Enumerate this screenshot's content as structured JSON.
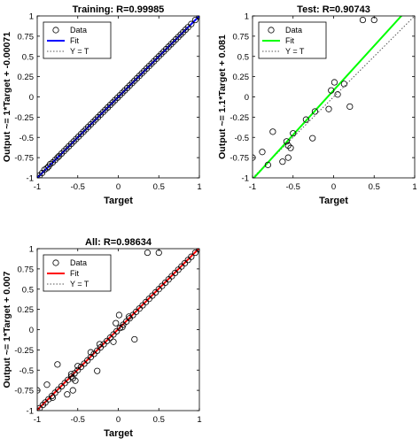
{
  "chart_data": [
    {
      "id": "training",
      "type": "scatter",
      "title": "Training: R=0.99985",
      "xlabel": "Target",
      "ylabel": "Output ~= 1*Target + -0.00071",
      "xlim": [
        -1,
        1
      ],
      "ylim": [
        -1,
        1
      ],
      "xticks": [
        "-1",
        "-0.5",
        "0",
        "0.5",
        "1"
      ],
      "yticks": [
        "-1",
        "-0.75",
        "-0.5",
        "-0.25",
        "0",
        "0.25",
        "0.5",
        "0.75",
        "1"
      ],
      "fit": {
        "slope": 1,
        "intercept": -0.00071,
        "color": "#0000ff"
      },
      "legend": {
        "placement": "top-left",
        "entries": [
          "Data",
          "Fit",
          "Y = T"
        ]
      },
      "points": [
        [
          -1,
          -1
        ],
        [
          -0.97,
          -0.97
        ],
        [
          -0.94,
          -0.94
        ],
        [
          -0.91,
          -0.9
        ],
        [
          -0.88,
          -0.88
        ],
        [
          -0.86,
          -0.86
        ],
        [
          -0.84,
          -0.83
        ],
        [
          -0.81,
          -0.81
        ],
        [
          -0.78,
          -0.78
        ],
        [
          -0.75,
          -0.75
        ],
        [
          -0.73,
          -0.73
        ],
        [
          -0.7,
          -0.7
        ],
        [
          -0.67,
          -0.67
        ],
        [
          -0.64,
          -0.64
        ],
        [
          -0.61,
          -0.61
        ],
        [
          -0.58,
          -0.58
        ],
        [
          -0.55,
          -0.55
        ],
        [
          -0.52,
          -0.52
        ],
        [
          -0.49,
          -0.49
        ],
        [
          -0.46,
          -0.46
        ],
        [
          -0.43,
          -0.43
        ],
        [
          -0.4,
          -0.4
        ],
        [
          -0.37,
          -0.37
        ],
        [
          -0.34,
          -0.34
        ],
        [
          -0.31,
          -0.31
        ],
        [
          -0.28,
          -0.28
        ],
        [
          -0.25,
          -0.25
        ],
        [
          -0.22,
          -0.22
        ],
        [
          -0.19,
          -0.19
        ],
        [
          -0.16,
          -0.16
        ],
        [
          -0.13,
          -0.13
        ],
        [
          -0.1,
          -0.1
        ],
        [
          -0.07,
          -0.07
        ],
        [
          -0.04,
          -0.04
        ],
        [
          -0.01,
          -0.01
        ],
        [
          0.02,
          0.02
        ],
        [
          0.05,
          0.05
        ],
        [
          0.08,
          0.08
        ],
        [
          0.11,
          0.11
        ],
        [
          0.14,
          0.14
        ],
        [
          0.17,
          0.17
        ],
        [
          0.2,
          0.2
        ],
        [
          0.23,
          0.23
        ],
        [
          0.26,
          0.26
        ],
        [
          0.29,
          0.29
        ],
        [
          0.32,
          0.32
        ],
        [
          0.35,
          0.35
        ],
        [
          0.38,
          0.38
        ],
        [
          0.41,
          0.41
        ],
        [
          0.44,
          0.44
        ],
        [
          0.47,
          0.47
        ],
        [
          0.5,
          0.5
        ],
        [
          0.53,
          0.53
        ],
        [
          0.56,
          0.56
        ],
        [
          0.59,
          0.59
        ],
        [
          0.62,
          0.62
        ],
        [
          0.65,
          0.65
        ],
        [
          0.68,
          0.68
        ],
        [
          0.71,
          0.71
        ],
        [
          0.74,
          0.74
        ],
        [
          0.77,
          0.77
        ],
        [
          0.8,
          0.8
        ],
        [
          0.83,
          0.83
        ],
        [
          0.86,
          0.86
        ],
        [
          0.9,
          0.9
        ],
        [
          0.95,
          0.95
        ],
        [
          1,
          1
        ],
        [
          1,
          0.99
        ]
      ]
    },
    {
      "id": "test",
      "type": "scatter",
      "title": "Test: R=0.90743",
      "xlabel": "Target",
      "ylabel": "Output ~= 1.1*Target + 0.081",
      "xlim": [
        -1,
        1
      ],
      "ylim": [
        -1,
        1
      ],
      "xticks": [
        "-1",
        "-0.5",
        "0",
        "0.5",
        "1"
      ],
      "yticks": [
        "-1",
        "-0.75",
        "-0.5",
        "-0.25",
        "0",
        "0.25",
        "0.5",
        "0.75",
        "1"
      ],
      "fit": {
        "slope": 1.1,
        "intercept": 0.081,
        "color": "#00ff00"
      },
      "legend": {
        "placement": "top-left",
        "entries": [
          "Data",
          "Fit",
          "Y = T"
        ]
      },
      "points": [
        [
          -1,
          -0.75
        ],
        [
          -0.88,
          -0.68
        ],
        [
          -0.81,
          -0.84
        ],
        [
          -0.75,
          -0.43
        ],
        [
          -0.63,
          -0.8
        ],
        [
          -0.58,
          -0.55
        ],
        [
          -0.56,
          -0.75
        ],
        [
          -0.56,
          -0.6
        ],
        [
          -0.53,
          -0.63
        ],
        [
          -0.5,
          -0.45
        ],
        [
          -0.34,
          -0.28
        ],
        [
          -0.26,
          -0.51
        ],
        [
          -0.23,
          -0.18
        ],
        [
          -0.06,
          -0.15
        ],
        [
          -0.03,
          0.08
        ],
        [
          0.01,
          0.18
        ],
        [
          0.05,
          0.03
        ],
        [
          0.13,
          0.16
        ],
        [
          0.2,
          -0.12
        ],
        [
          0.36,
          0.95
        ],
        [
          0.5,
          0.95
        ]
      ]
    },
    {
      "id": "all",
      "type": "scatter",
      "title": "All: R=0.98634",
      "xlabel": "Target",
      "ylabel": "Output ~= 1*Target + 0.007",
      "xlim": [
        -1,
        1
      ],
      "ylim": [
        -1,
        1
      ],
      "xticks": [
        "-1",
        "-0.5",
        "0",
        "0.5",
        "1"
      ],
      "yticks": [
        "-1",
        "-0.75",
        "-0.5",
        "-0.25",
        "0",
        "0.25",
        "0.5",
        "0.75",
        "1"
      ],
      "fit": {
        "slope": 1,
        "intercept": 0.007,
        "color": "#ff0000"
      },
      "legend": {
        "placement": "top-left",
        "entries": [
          "Data",
          "Fit",
          "Y = T"
        ]
      },
      "points": [
        [
          -1,
          -1
        ],
        [
          -1,
          -0.75
        ],
        [
          -0.97,
          -0.97
        ],
        [
          -0.93,
          -0.93
        ],
        [
          -0.9,
          -0.9
        ],
        [
          -0.88,
          -0.68
        ],
        [
          -0.86,
          -0.86
        ],
        [
          -0.82,
          -0.82
        ],
        [
          -0.81,
          -0.84
        ],
        [
          -0.78,
          -0.78
        ],
        [
          -0.75,
          -0.43
        ],
        [
          -0.74,
          -0.74
        ],
        [
          -0.7,
          -0.7
        ],
        [
          -0.66,
          -0.66
        ],
        [
          -0.63,
          -0.8
        ],
        [
          -0.62,
          -0.62
        ],
        [
          -0.58,
          -0.55
        ],
        [
          -0.58,
          -0.58
        ],
        [
          -0.56,
          -0.75
        ],
        [
          -0.56,
          -0.6
        ],
        [
          -0.53,
          -0.63
        ],
        [
          -0.54,
          -0.54
        ],
        [
          -0.5,
          -0.45
        ],
        [
          -0.5,
          -0.5
        ],
        [
          -0.46,
          -0.46
        ],
        [
          -0.42,
          -0.42
        ],
        [
          -0.38,
          -0.38
        ],
        [
          -0.34,
          -0.28
        ],
        [
          -0.34,
          -0.34
        ],
        [
          -0.3,
          -0.3
        ],
        [
          -0.26,
          -0.51
        ],
        [
          -0.26,
          -0.26
        ],
        [
          -0.23,
          -0.18
        ],
        [
          -0.22,
          -0.22
        ],
        [
          -0.18,
          -0.18
        ],
        [
          -0.14,
          -0.14
        ],
        [
          -0.1,
          -0.1
        ],
        [
          -0.06,
          -0.15
        ],
        [
          -0.06,
          -0.06
        ],
        [
          -0.03,
          0.08
        ],
        [
          -0.02,
          -0.02
        ],
        [
          0.01,
          0.18
        ],
        [
          0.02,
          0.02
        ],
        [
          0.05,
          0.03
        ],
        [
          0.06,
          0.06
        ],
        [
          0.1,
          0.1
        ],
        [
          0.13,
          0.16
        ],
        [
          0.14,
          0.14
        ],
        [
          0.18,
          0.18
        ],
        [
          0.2,
          -0.12
        ],
        [
          0.22,
          0.22
        ],
        [
          0.26,
          0.26
        ],
        [
          0.3,
          0.3
        ],
        [
          0.34,
          0.34
        ],
        [
          0.36,
          0.95
        ],
        [
          0.38,
          0.38
        ],
        [
          0.42,
          0.42
        ],
        [
          0.46,
          0.46
        ],
        [
          0.5,
          0.95
        ],
        [
          0.5,
          0.5
        ],
        [
          0.54,
          0.54
        ],
        [
          0.58,
          0.58
        ],
        [
          0.62,
          0.62
        ],
        [
          0.66,
          0.66
        ],
        [
          0.7,
          0.7
        ],
        [
          0.74,
          0.74
        ],
        [
          0.78,
          0.78
        ],
        [
          0.82,
          0.82
        ],
        [
          0.86,
          0.86
        ],
        [
          0.9,
          0.9
        ],
        [
          0.95,
          0.95
        ],
        [
          1,
          1
        ],
        [
          1,
          0.99
        ]
      ]
    }
  ]
}
